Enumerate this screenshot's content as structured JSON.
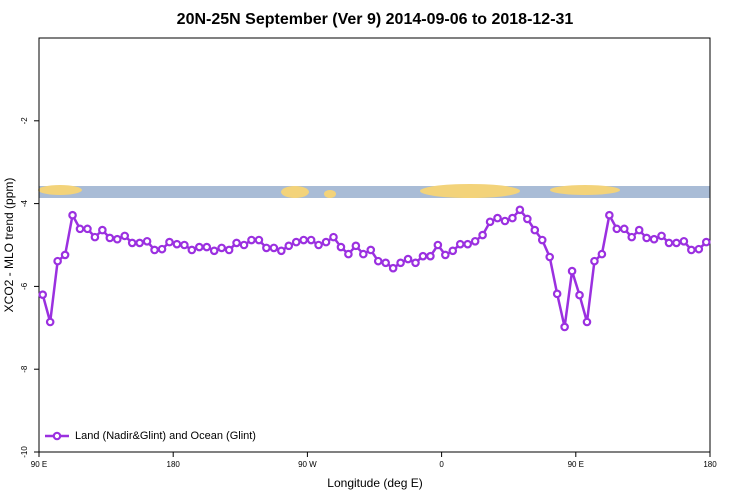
{
  "chart_data": {
    "type": "line",
    "title": "20N-25N September (Ver 9)   2014-09-06 to 2018-12-31",
    "x_label": "Longitude (deg E)",
    "y_label": "XCO2 - MLO trend (ppm)",
    "xlim": [
      90,
      540
    ],
    "ylim": [
      -10,
      0
    ],
    "xticks": [
      {
        "value": 90,
        "label": "90 E"
      },
      180,
      {
        "value": 270,
        "label": "90 W"
      },
      {
        "value": 360,
        "label": "0"
      },
      {
        "value": 450,
        "label": "90 E"
      },
      {
        "value": 540,
        "label": "180"
      }
    ],
    "yticks": [
      -10,
      -8,
      -6,
      -4,
      -2
    ],
    "legend": "bottom-left",
    "x": [
      92.5,
      97.5,
      102.5,
      107.5,
      112.5,
      117.5,
      122.5,
      127.5,
      132.5,
      137.5,
      142.5,
      147.5,
      152.5,
      157.5,
      162.5,
      167.5,
      172.5,
      177.5,
      182.5,
      187.5,
      192.5,
      197.5,
      202.5,
      207.5,
      212.5,
      217.5,
      222.5,
      227.5,
      232.5,
      237.5,
      242.5,
      247.5,
      252.5,
      257.5,
      262.5,
      267.5,
      272.5,
      277.5,
      282.5,
      287.5,
      292.5,
      297.5,
      302.5,
      307.5,
      312.5,
      317.5,
      322.5,
      327.5,
      332.5,
      337.5,
      342.5,
      347.5,
      352.5,
      357.5,
      362.5,
      367.5,
      372.5,
      377.5,
      382.5,
      387.5,
      392.5,
      397.5,
      402.5,
      407.5,
      412.5,
      417.5,
      422.5,
      427.5,
      432.5,
      437.5,
      442.5,
      447.5,
      452.5,
      457.5,
      462.5,
      467.5,
      472.5,
      477.5,
      482.5,
      487.5,
      492.5,
      497.5,
      502.5,
      507.5,
      512.5,
      517.5,
      522.5,
      527.5,
      532.5,
      537.5
    ],
    "series": [
      {
        "name": "Land (Nadir&Glint) and Ocean (Glint)",
        "color": "#9b30e0",
        "values": [
          -6.2,
          -6.86,
          -5.39,
          -5.24,
          -4.28,
          -4.61,
          -4.61,
          -4.81,
          -4.64,
          -4.83,
          -4.86,
          -4.78,
          -4.95,
          -4.95,
          -4.91,
          -5.12,
          -5.1,
          -4.93,
          -4.98,
          -5.0,
          -5.12,
          -5.05,
          -5.05,
          -5.14,
          -5.07,
          -5.12,
          -4.95,
          -5.0,
          -4.88,
          -4.88,
          -5.07,
          -5.07,
          -5.14,
          -5.02,
          -4.93,
          -4.88,
          -4.88,
          -5.0,
          -4.93,
          -4.81,
          -5.05,
          -5.22,
          -5.02,
          -5.22,
          -5.12,
          -5.39,
          -5.43,
          -5.56,
          -5.43,
          -5.34,
          -5.43,
          -5.27,
          -5.27,
          -5.0,
          -5.24,
          -5.14,
          -4.98,
          -4.98,
          -4.91,
          -4.76,
          -4.44,
          -4.35,
          -4.42,
          -4.35,
          -4.15,
          -4.37,
          -4.64,
          -4.88,
          -5.29,
          -6.18,
          -6.98,
          -5.63,
          -6.21,
          -6.86,
          -5.39,
          -5.22,
          -4.28,
          -4.61,
          -4.61,
          -4.81,
          -4.64,
          -4.83,
          -4.86,
          -4.78,
          -4.95,
          -4.95,
          -4.91,
          -5.12,
          -5.1,
          -4.93
        ]
      }
    ]
  }
}
